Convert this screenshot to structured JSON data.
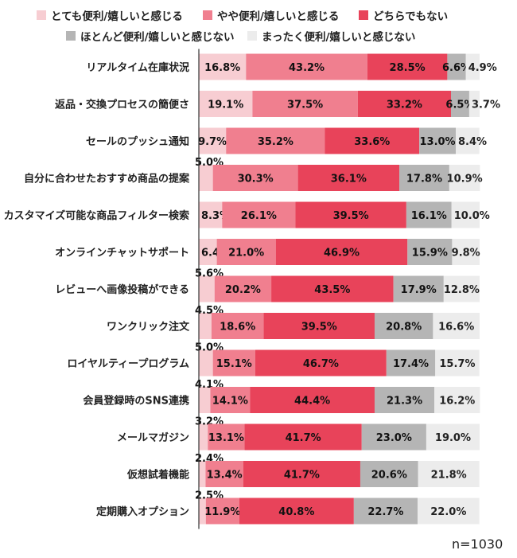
{
  "chart_data": {
    "type": "bar",
    "orientation": "horizontal",
    "stacked": true,
    "value_unit": "%",
    "categories": [
      "リアルタイム在庫状況",
      "返品・交換プロセスの簡便さ",
      "セールのプッシュ通知",
      "自分に合わせたおすすめ商品の提案",
      "カスタマイズ可能な商品フィルター検索",
      "オンラインチャットサポート",
      "レビューへ画像投稿ができる",
      "ワンクリック注文",
      "ロイヤルティープログラム",
      "会員登録時のSNS連携",
      "メールマガジン",
      "仮想試着機能",
      "定期購入オプション"
    ],
    "series": [
      {
        "name": "とても便利/嬉しいと感じる",
        "color": "#f7cdd2",
        "values": [
          16.8,
          19.1,
          9.7,
          5.0,
          8.3,
          6.4,
          5.6,
          4.5,
          5.0,
          4.1,
          3.2,
          2.4,
          2.5
        ]
      },
      {
        "name": "やや便利/嬉しいと感じる",
        "color": "#f07f8f",
        "values": [
          43.2,
          37.5,
          35.2,
          30.3,
          26.1,
          21.0,
          20.2,
          18.6,
          15.1,
          14.1,
          13.1,
          13.4,
          11.9
        ]
      },
      {
        "name": "どちらでもない",
        "color": "#e8435a",
        "values": [
          28.5,
          33.2,
          33.6,
          36.1,
          39.5,
          46.9,
          43.5,
          39.5,
          46.7,
          44.4,
          41.7,
          41.7,
          40.8
        ]
      },
      {
        "name": "ほとんど便利/嬉しいと感じない",
        "color": "#b5b5b5",
        "values": [
          6.6,
          6.5,
          13.0,
          17.8,
          16.1,
          15.9,
          17.9,
          20.8,
          17.4,
          21.3,
          23.0,
          20.6,
          22.7
        ]
      },
      {
        "name": "まったく便利/嬉しいと感じない",
        "color": "#ececec",
        "values": [
          4.9,
          3.7,
          8.4,
          10.9,
          10.0,
          9.8,
          12.8,
          16.6,
          15.7,
          16.2,
          19.0,
          21.8,
          22.0
        ]
      }
    ],
    "legend": {
      "placement": "top",
      "labels": [
        "とても便利/嬉しいと感じる",
        "やや便利/嬉しいと感じる",
        "どちらでもない",
        "ほとんど便利/嬉しいと感じない",
        "まったく便利/嬉しいと感じない"
      ]
    },
    "xlim": [
      0,
      100
    ],
    "grid": false,
    "annotation": "n=1030"
  }
}
